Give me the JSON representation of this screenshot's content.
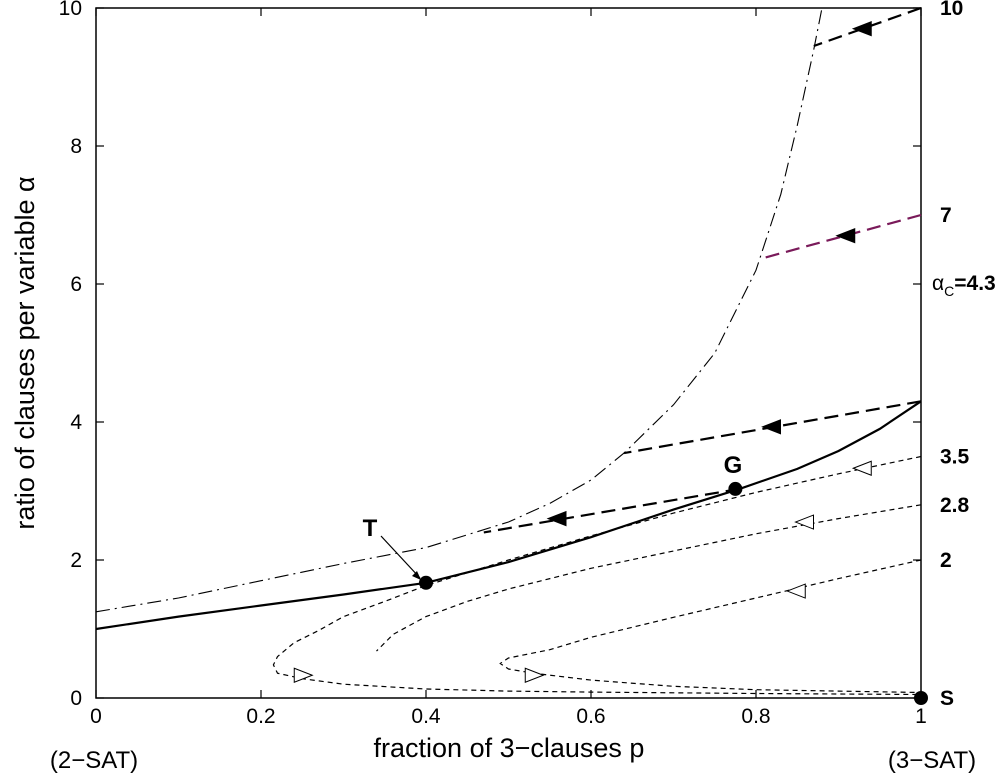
{
  "chart_data": {
    "type": "line",
    "xlabel": "fraction of 3−clauses  p",
    "ylabel": "ratio of clauses per variable  α",
    "xlim": [
      0,
      1
    ],
    "ylim": [
      0,
      10
    ],
    "x_ticks": [
      "0",
      "0.2",
      "0.4",
      "0.6",
      "0.8",
      "1"
    ],
    "y_ticks": [
      "0",
      "2",
      "4",
      "6",
      "8",
      "10"
    ],
    "x_extra_labels": {
      "left": "(2−SAT)",
      "right": "(3−SAT)"
    },
    "right_labels": [
      {
        "text": "10",
        "y": 10
      },
      {
        "text": "7",
        "y": 7
      },
      {
        "text": "3.5",
        "y": 3.5
      },
      {
        "text": "2.8",
        "y": 2.8
      },
      {
        "text": "2",
        "y": 2.0
      },
      {
        "text": "S",
        "y": 0.0
      }
    ],
    "alpha_c_label": {
      "prefix": "α",
      "sub": "C",
      "suffix": "=4.3"
    },
    "point_labels": {
      "T": "T",
      "G": "G"
    },
    "colors": {
      "line": "#000000",
      "purple": "#7a1a5a"
    },
    "series": [
      {
        "style": "solid",
        "points": [
          [
            0,
            1.0
          ],
          [
            0.1,
            1.18
          ],
          [
            0.2,
            1.34
          ],
          [
            0.3,
            1.5
          ],
          [
            0.4,
            1.67
          ],
          [
            0.5,
            1.97
          ],
          [
            0.6,
            2.33
          ],
          [
            0.7,
            2.73
          ],
          [
            0.78,
            3.03
          ],
          [
            0.85,
            3.32
          ],
          [
            0.9,
            3.58
          ],
          [
            0.95,
            3.9
          ],
          [
            1,
            4.3
          ]
        ]
      },
      {
        "style": "dashdot",
        "points": [
          [
            0,
            1.25
          ],
          [
            0.1,
            1.45
          ],
          [
            0.2,
            1.7
          ],
          [
            0.3,
            1.95
          ],
          [
            0.4,
            2.18
          ],
          [
            0.5,
            2.55
          ],
          [
            0.55,
            2.82
          ],
          [
            0.6,
            3.16
          ],
          [
            0.64,
            3.55
          ],
          [
            0.7,
            4.25
          ],
          [
            0.75,
            5.0
          ],
          [
            0.8,
            6.2
          ],
          [
            0.83,
            7.3
          ],
          [
            0.85,
            8.3
          ],
          [
            0.87,
            9.4
          ],
          [
            0.88,
            10.0
          ]
        ]
      },
      {
        "style": "shortdash",
        "points": [
          [
            1,
            3.5
          ],
          [
            0.9,
            3.25
          ],
          [
            0.8,
            2.98
          ],
          [
            0.7,
            2.68
          ],
          [
            0.6,
            2.35
          ],
          [
            0.5,
            2.0
          ],
          [
            0.4,
            1.63
          ],
          [
            0.35,
            1.4
          ],
          [
            0.3,
            1.18
          ],
          [
            0.27,
            0.98
          ],
          [
            0.24,
            0.8
          ],
          [
            0.22,
            0.6
          ],
          [
            0.215,
            0.48
          ],
          [
            0.22,
            0.36
          ],
          [
            0.25,
            0.28
          ],
          [
            0.3,
            0.2
          ],
          [
            0.4,
            0.13
          ],
          [
            0.5,
            0.1
          ],
          [
            0.6,
            0.085
          ],
          [
            0.8,
            0.065
          ],
          [
            1,
            0.05
          ]
        ],
        "arrows": [
          {
            "x": 0.93,
            "y": 3.33,
            "dir": "left"
          },
          {
            "x": 0.25,
            "y": 0.33,
            "dir": "right"
          }
        ]
      },
      {
        "style": "shortdash",
        "points": [
          [
            1,
            2.8
          ],
          [
            0.9,
            2.6
          ],
          [
            0.8,
            2.38
          ],
          [
            0.7,
            2.13
          ],
          [
            0.6,
            1.88
          ],
          [
            0.5,
            1.58
          ],
          [
            0.45,
            1.4
          ],
          [
            0.4,
            1.18
          ],
          [
            0.38,
            1.05
          ],
          [
            0.36,
            0.92
          ],
          [
            0.35,
            0.8
          ],
          [
            0.34,
            0.68
          ]
        ],
        "arrows": [
          {
            "x": 0.86,
            "y": 2.55,
            "dir": "left"
          }
        ]
      },
      {
        "style": "shortdash",
        "points": [
          [
            1,
            2.0
          ],
          [
            0.9,
            1.73
          ],
          [
            0.8,
            1.45
          ],
          [
            0.7,
            1.17
          ],
          [
            0.6,
            0.88
          ],
          [
            0.55,
            0.7
          ],
          [
            0.5,
            0.58
          ],
          [
            0.49,
            0.5
          ],
          [
            0.5,
            0.42
          ],
          [
            0.53,
            0.36
          ],
          [
            0.6,
            0.26
          ],
          [
            0.7,
            0.17
          ],
          [
            0.8,
            0.12
          ],
          [
            0.9,
            0.1
          ],
          [
            1,
            0.08
          ]
        ],
        "arrows": [
          {
            "x": 0.85,
            "y": 1.55,
            "dir": "left"
          },
          {
            "x": 0.53,
            "y": 0.33,
            "dir": "right"
          }
        ]
      },
      {
        "style": "longdash",
        "points": [
          [
            1,
            10.0
          ],
          [
            0.87,
            9.45
          ]
        ],
        "arrows": [
          {
            "x": 0.93,
            "y": 9.7,
            "dir": "left",
            "filled": true
          }
        ]
      },
      {
        "style": "longdash",
        "color": "purple",
        "points": [
          [
            1,
            7.0
          ],
          [
            0.81,
            6.38
          ]
        ],
        "arrows": [
          {
            "x": 0.91,
            "y": 6.7,
            "dir": "left",
            "filled": true
          }
        ]
      },
      {
        "style": "longdash",
        "points": [
          [
            1,
            4.3
          ],
          [
            0.64,
            3.55
          ]
        ],
        "arrows": [
          {
            "x": 0.82,
            "y": 3.93,
            "dir": "left",
            "filled": true
          }
        ]
      },
      {
        "style": "longdash",
        "points": [
          [
            0.78,
            3.03
          ],
          [
            0.47,
            2.4
          ]
        ],
        "arrows": [
          {
            "x": 0.56,
            "y": 2.6,
            "dir": "left",
            "filled": true
          }
        ]
      }
    ],
    "points": [
      {
        "name": "T",
        "x": 0.4,
        "y": 1.67
      },
      {
        "name": "G",
        "x": 0.775,
        "y": 3.03
      },
      {
        "name": "S",
        "x": 1.0,
        "y": 0.0
      }
    ]
  }
}
